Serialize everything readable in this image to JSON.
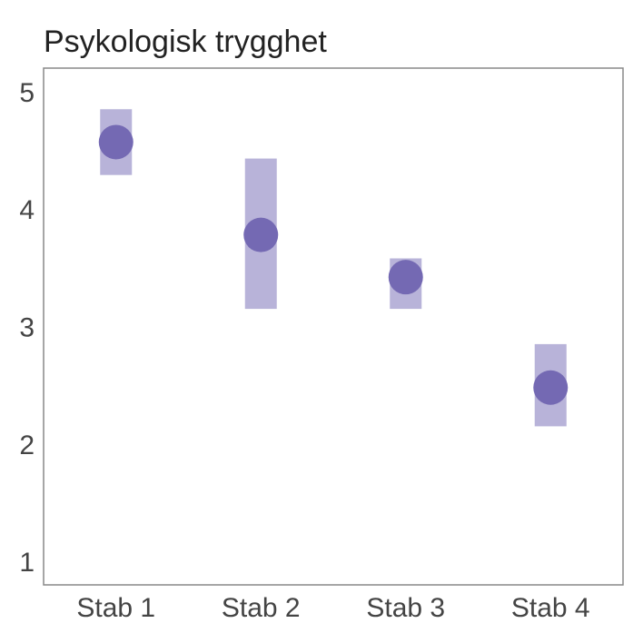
{
  "chart_data": {
    "type": "scatter",
    "title": "Psykologisk trygghet",
    "xlabel": "",
    "ylabel": "",
    "categories": [
      "Stab 1",
      "Stab 2",
      "Stab 3",
      "Stab 4"
    ],
    "series": [
      {
        "values": [
          4.57,
          3.78,
          3.42,
          2.48
        ],
        "lower": [
          4.29,
          3.15,
          3.15,
          2.15
        ],
        "upper": [
          4.85,
          4.43,
          3.58,
          2.85
        ]
      }
    ],
    "yticks": [
      "1",
      "2",
      "3",
      "4",
      "5"
    ],
    "ylim": [
      0.8,
      5.2
    ],
    "grid": false,
    "legend": "none",
    "colors": {
      "point": "#7469b3",
      "interval": "#b8b3d9",
      "frame": "#888888"
    }
  }
}
